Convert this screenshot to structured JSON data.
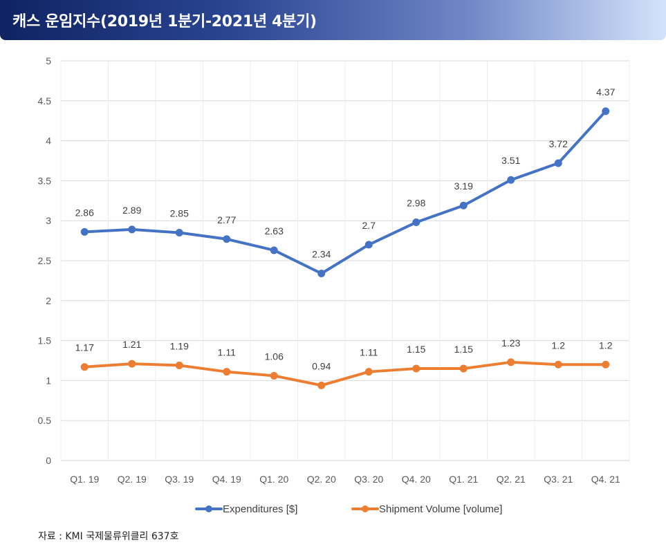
{
  "title": "캐스 운임지수(2019년 1분기-2021년 4분기)",
  "source": "자료 : KMI 국제물류위클리 637호",
  "chart_data": {
    "type": "line",
    "categories": [
      "Q1. 19",
      "Q2. 19",
      "Q3. 19",
      "Q4. 19",
      "Q1. 20",
      "Q2. 20",
      "Q3. 20",
      "Q4. 20",
      "Q1. 21",
      "Q2. 21",
      "Q3. 21",
      "Q4. 21"
    ],
    "y_ticks": [
      "0",
      "0.5",
      "1",
      "1.5",
      "2",
      "2.5",
      "3",
      "3.5",
      "4",
      "4.5",
      "5"
    ],
    "ylim": [
      0,
      5
    ],
    "grid": true,
    "legend_position": "bottom",
    "series": [
      {
        "name": "Expenditures [$]",
        "color": "#4472c4",
        "values": [
          2.86,
          2.89,
          2.85,
          2.77,
          2.63,
          2.34,
          2.7,
          2.98,
          3.19,
          3.51,
          3.72,
          4.37
        ],
        "labels": [
          "2.86",
          "2.89",
          "2.85",
          "2.77",
          "2.63",
          "2.34",
          "2.7",
          "2.98",
          "3.19",
          "3.51",
          "3.72",
          "4.37"
        ]
      },
      {
        "name": "Shipment Volume [volume]",
        "color": "#ed7d31",
        "values": [
          1.17,
          1.21,
          1.19,
          1.11,
          1.06,
          0.94,
          1.11,
          1.15,
          1.15,
          1.23,
          1.2,
          1.2
        ],
        "labels": [
          "1.17",
          "1.21",
          "1.19",
          "1.11",
          "1.06",
          "0.94",
          "1.11",
          "1.15",
          "1.15",
          "1.23",
          "1.2",
          "1.2"
        ]
      }
    ]
  }
}
